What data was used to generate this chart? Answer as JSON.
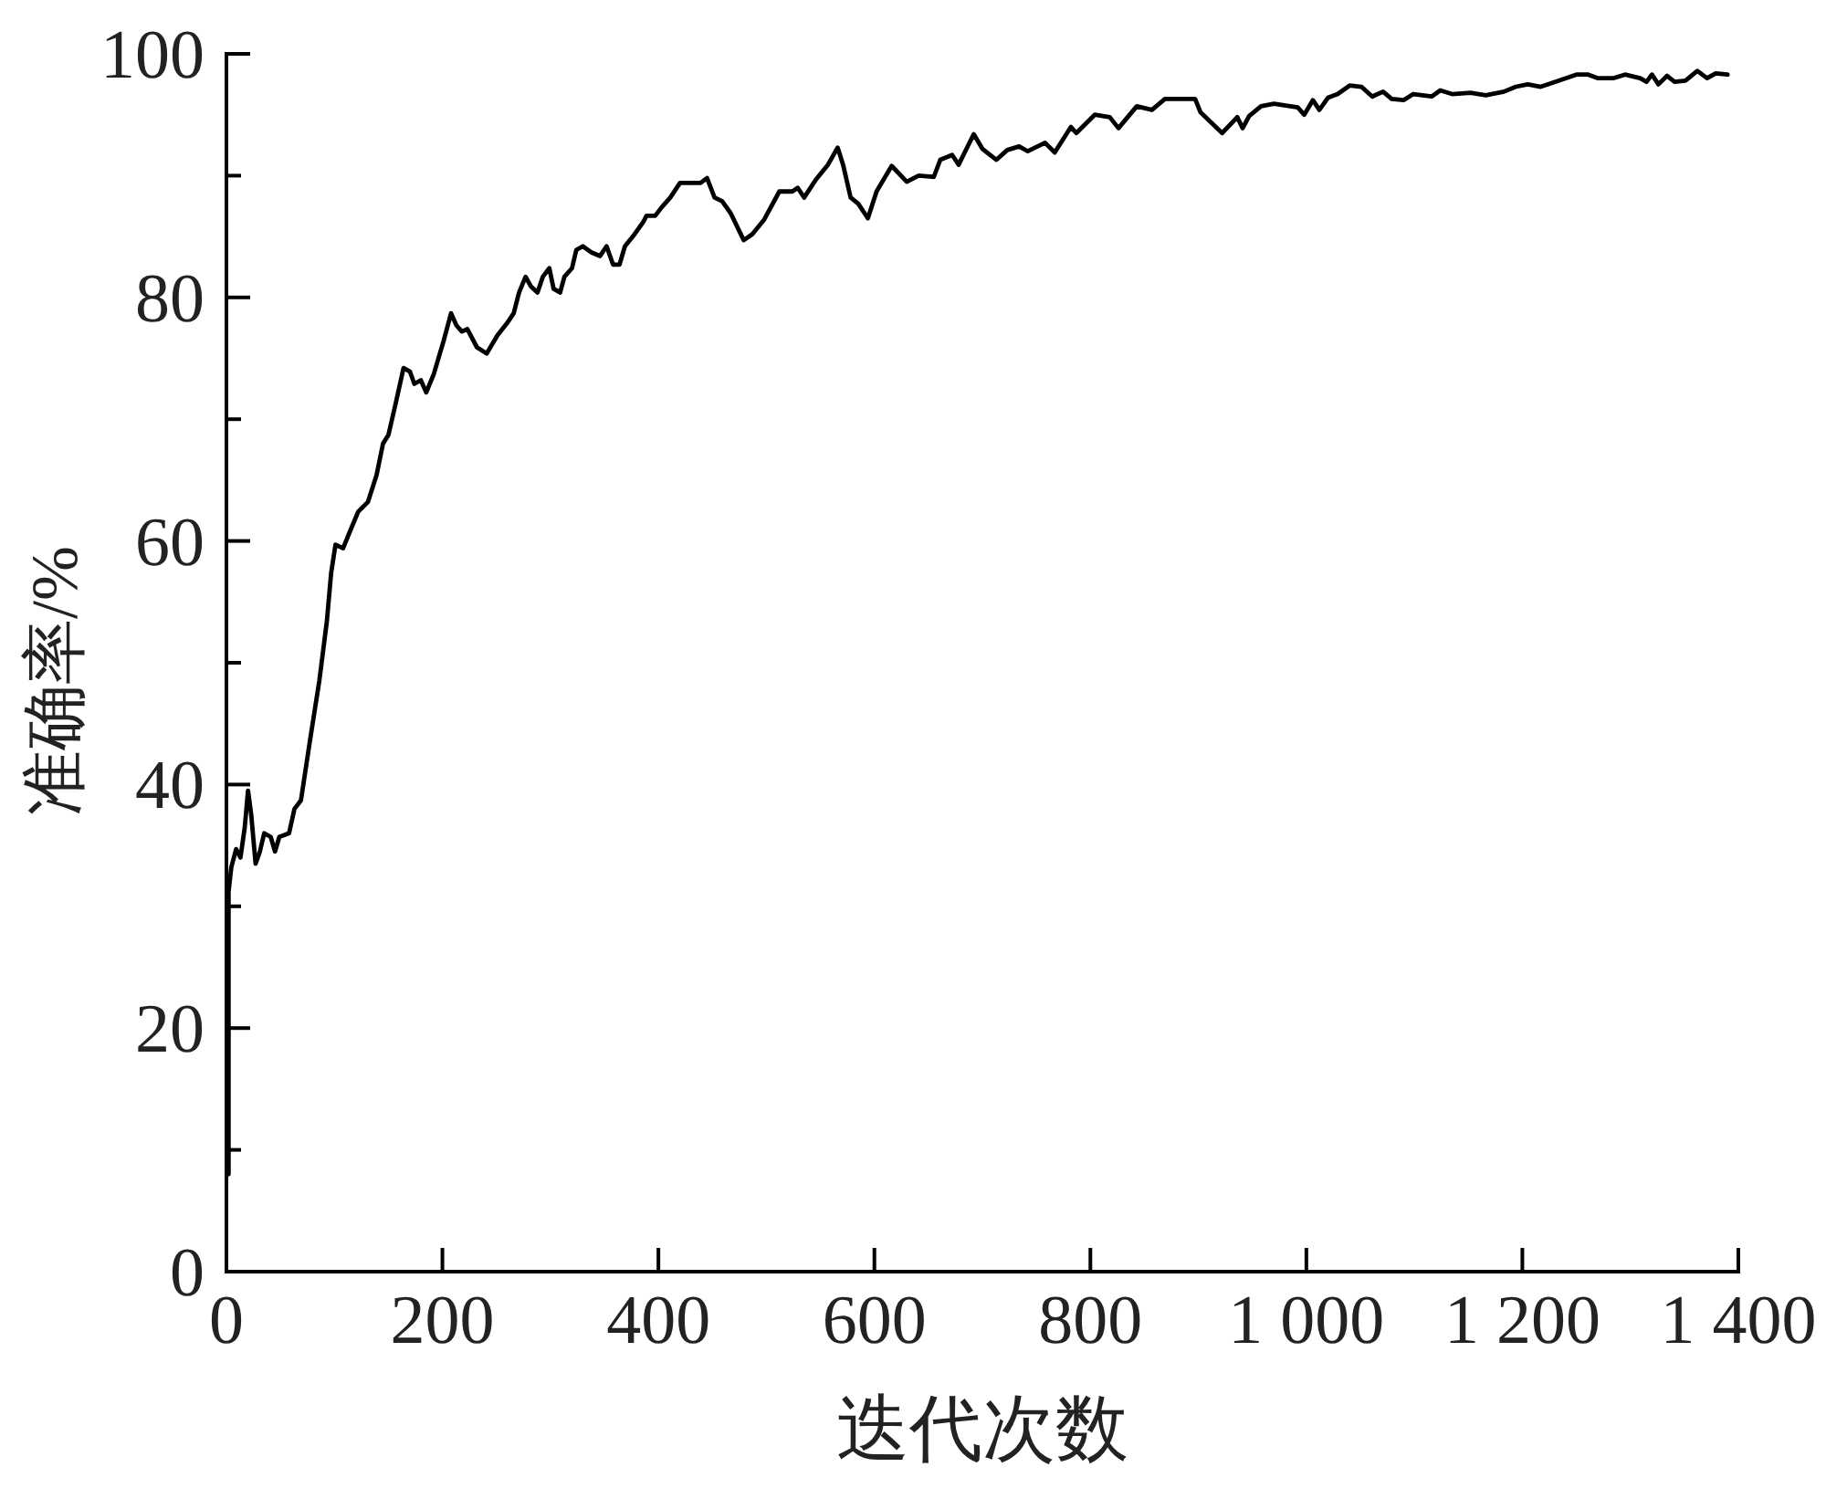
{
  "chart_data": {
    "type": "line",
    "xlabel": "迭代次数",
    "ylabel": "准确率/%",
    "xlim": [
      0,
      1400
    ],
    "ylim": [
      0,
      100
    ],
    "xticks": [
      0,
      200,
      400,
      600,
      800,
      {
        "value": 1000,
        "label": "1 000"
      },
      {
        "value": 1200,
        "label": "1 200"
      },
      {
        "value": 1400,
        "label": "1 400"
      }
    ],
    "yticks": [
      0,
      {
        "value": 10,
        "label": null
      },
      20,
      {
        "value": 30,
        "label": null
      },
      40,
      {
        "value": 50,
        "label": null
      },
      60,
      {
        "value": 70,
        "label": null
      },
      80,
      {
        "value": 90,
        "label": null
      },
      100
    ],
    "line_style": "solid",
    "series": [
      {
        "color": "#000000",
        "x": [
          2,
          2,
          4.5,
          9,
          13,
          17,
          20,
          23,
          27,
          31,
          35,
          41,
          45,
          49,
          58,
          63,
          69,
          77,
          86,
          93,
          97,
          101,
          108,
          114,
          122,
          131,
          139,
          145,
          150,
          157,
          164,
          170,
          174,
          180,
          185,
          192,
          201,
          208,
          213,
          218,
          223,
          232,
          241,
          251,
          260,
          266,
          271,
          277,
          282,
          288,
          293,
          299,
          303,
          309,
          313,
          320,
          324,
          330,
          338,
          346,
          352,
          358,
          364,
          369,
          378,
          386,
          389,
          397,
          403,
          411,
          420,
          431,
          439,
          445,
          452,
          459,
          467,
          479,
          487,
          498,
          512,
          524,
          529,
          535,
          546,
          557,
          566,
          571,
          578,
          585,
          594,
          602,
          616,
          630,
          641,
          655,
          661,
          672,
          678,
          692,
          700,
          713,
          723,
          734,
          742,
          758,
          767,
          782,
          787,
          804,
          818,
          826,
          843,
          857,
          869,
          897,
          902,
          922,
          936,
          941,
          947,
          958,
          970,
          992,
          998,
          1006,
          1012,
          1020,
          1029,
          1040,
          1051,
          1061,
          1071,
          1079,
          1090,
          1099,
          1116,
          1124,
          1135,
          1152,
          1166,
          1183,
          1194,
          1205,
          1217,
          1234,
          1250,
          1261,
          1270,
          1284,
          1295,
          1309,
          1315,
          1320,
          1326,
          1334,
          1341,
          1351,
          1362,
          1371,
          1379,
          1390
        ],
        "values": [
          8.0,
          31.2,
          33.2,
          34.7,
          34.0,
          36.5,
          39.5,
          37.5,
          33.5,
          34.5,
          36.0,
          35.7,
          34.5,
          35.7,
          36.0,
          38.0,
          38.7,
          43.4,
          48.5,
          53.4,
          57.4,
          59.7,
          59.4,
          60.7,
          62.4,
          63.2,
          65.4,
          68.0,
          68.7,
          71.4,
          74.2,
          73.9,
          72.9,
          73.2,
          72.2,
          73.7,
          76.4,
          78.7,
          77.7,
          77.2,
          77.4,
          75.9,
          75.4,
          76.9,
          77.9,
          78.7,
          80.4,
          81.7,
          80.9,
          80.4,
          81.7,
          82.4,
          80.7,
          80.4,
          81.7,
          82.4,
          83.9,
          84.2,
          83.7,
          83.4,
          84.2,
          82.7,
          82.7,
          84.2,
          85.2,
          86.2,
          86.7,
          86.7,
          87.4,
          88.2,
          89.4,
          89.4,
          89.4,
          89.8,
          88.2,
          87.9,
          86.9,
          84.7,
          85.2,
          86.4,
          88.7,
          88.7,
          89.0,
          88.2,
          89.7,
          90.9,
          92.3,
          90.9,
          88.2,
          87.7,
          86.5,
          88.7,
          90.8,
          89.5,
          90.0,
          89.9,
          91.3,
          91.7,
          90.9,
          93.4,
          92.2,
          91.3,
          92.1,
          92.4,
          92.0,
          92.7,
          91.9,
          94.0,
          93.5,
          95.0,
          94.8,
          93.9,
          95.7,
          95.4,
          96.3,
          96.3,
          95.2,
          93.5,
          94.8,
          93.9,
          94.9,
          95.7,
          95.9,
          95.6,
          95.0,
          96.2,
          95.4,
          96.4,
          96.7,
          97.4,
          97.3,
          96.5,
          96.9,
          96.3,
          96.2,
          96.7,
          96.5,
          97.0,
          96.7,
          96.8,
          96.6,
          96.9,
          97.3,
          97.5,
          97.3,
          97.8,
          98.3,
          98.3,
          98.0,
          98.0,
          98.3,
          98.0,
          97.7,
          98.3,
          97.5,
          98.2,
          97.7,
          97.8,
          98.6,
          98.0,
          98.4,
          98.3
        ]
      }
    ]
  }
}
